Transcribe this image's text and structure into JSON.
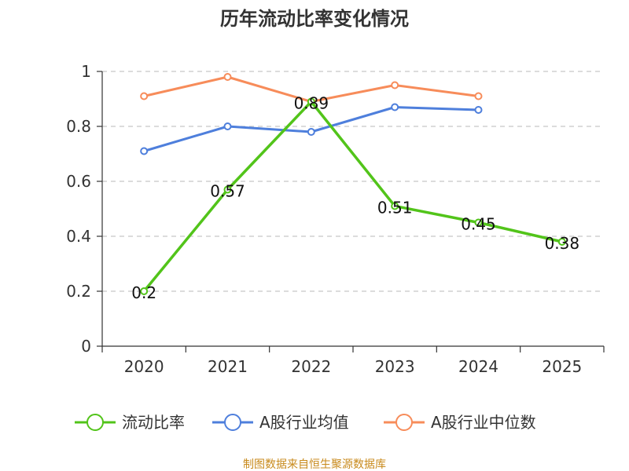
{
  "chart_data": {
    "type": "line",
    "title": "历年流动比率变化情况",
    "categories": [
      "2020",
      "2021",
      "2022",
      "2023",
      "2024",
      "2025"
    ],
    "y_ticks": [
      "0",
      "0.2",
      "0.4",
      "0.6",
      "0.8",
      "1"
    ],
    "ylim": [
      0,
      1
    ],
    "grid": true,
    "legend_position": "bottom",
    "series": [
      {
        "name": "流动比率",
        "color": "#52c41a",
        "values": [
          0.2,
          0.57,
          0.89,
          0.51,
          0.45,
          0.38
        ],
        "labels": [
          "0.2",
          "0.57",
          "0.89",
          "0.51",
          "0.45",
          "0.38"
        ]
      },
      {
        "name": "A股行业均值",
        "color": "#4e7fdc",
        "values": [
          0.71,
          0.8,
          0.78,
          0.87,
          0.86,
          null
        ]
      },
      {
        "name": "A股行业中位数",
        "color": "#f78c5a",
        "values": [
          0.91,
          0.98,
          0.89,
          0.95,
          0.91,
          null
        ]
      }
    ]
  },
  "source": {
    "text": "制图数据来自恒生聚源数据库",
    "color": "#c88a1c"
  }
}
